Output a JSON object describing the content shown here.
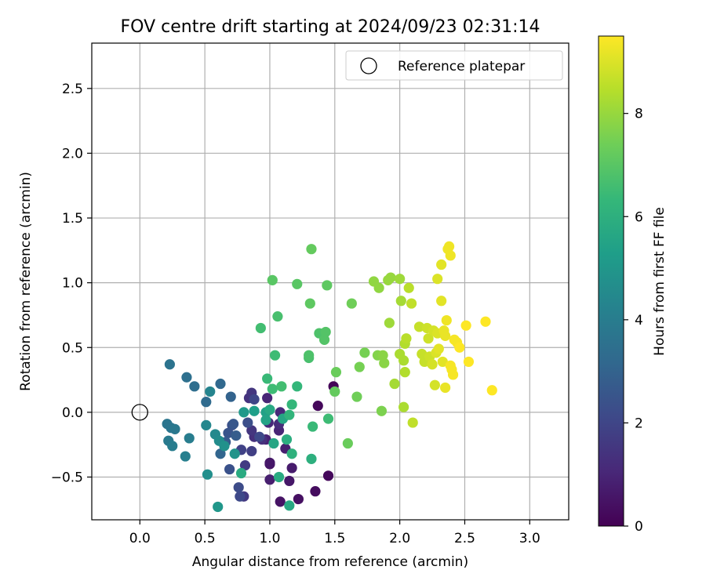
{
  "chart_data": {
    "type": "scatter",
    "title": "FOV centre drift starting at 2024/09/23 02:31:14",
    "xlabel": "Angular distance from reference (arcmin)",
    "ylabel": "Rotation from reference (arcmin)",
    "xlim": [
      -0.37,
      3.3
    ],
    "ylim": [
      -0.83,
      2.85
    ],
    "xticks": [
      0.0,
      0.5,
      1.0,
      1.5,
      2.0,
      2.5,
      3.0
    ],
    "xtick_labels": [
      "0.0",
      "0.5",
      "1.0",
      "1.5",
      "2.0",
      "2.5",
      "3.0"
    ],
    "yticks": [
      -0.5,
      0.0,
      0.5,
      1.0,
      1.5,
      2.0,
      2.5
    ],
    "ytick_labels": [
      "−0.5",
      "0.0",
      "0.5",
      "1.0",
      "1.5",
      "2.0",
      "2.5"
    ],
    "grid": true,
    "legend": {
      "position": "top-right",
      "entries": [
        {
          "label": "Reference platepar",
          "marker": "open-circle"
        }
      ]
    },
    "reference_point": {
      "x": 0.0,
      "y": 0.0
    },
    "colorbar": {
      "label": "Hours from first FF file",
      "colormap": "viridis",
      "range": [
        0,
        9.5
      ],
      "ticks": [
        0,
        2,
        4,
        6,
        8
      ],
      "tick_labels": [
        "0",
        "2",
        "4",
        "6",
        "8"
      ],
      "stops": [
        "#440154",
        "#482878",
        "#3e4989",
        "#31688e",
        "#26828e",
        "#1f9e89",
        "#35b779",
        "#6ece58",
        "#b5de2b",
        "#fde725"
      ]
    },
    "points": [
      {
        "x": 1.49,
        "y": 0.2,
        "h": 0.1
      },
      {
        "x": 1.37,
        "y": 0.05,
        "h": 0.2
      },
      {
        "x": 1.45,
        "y": -0.49,
        "h": 0.2
      },
      {
        "x": 1.35,
        "y": -0.61,
        "h": 0.3
      },
      {
        "x": 1.22,
        "y": -0.67,
        "h": 0.4
      },
      {
        "x": 1.08,
        "y": -0.69,
        "h": 0.5
      },
      {
        "x": 1.0,
        "y": -0.4,
        "h": 0.5
      },
      {
        "x": 1.0,
        "y": -0.39,
        "h": 0.6
      },
      {
        "x": 1.15,
        "y": -0.53,
        "h": 0.6
      },
      {
        "x": 1.17,
        "y": -0.43,
        "h": 0.7
      },
      {
        "x": 1.0,
        "y": -0.52,
        "h": 0.8
      },
      {
        "x": 1.12,
        "y": -0.28,
        "h": 0.8
      },
      {
        "x": 0.97,
        "y": -0.21,
        "h": 0.9
      },
      {
        "x": 0.98,
        "y": 0.11,
        "h": 1.0
      },
      {
        "x": 1.07,
        "y": -0.14,
        "h": 1.0
      },
      {
        "x": 1.08,
        "y": 0.0,
        "h": 1.1
      },
      {
        "x": 0.99,
        "y": -0.08,
        "h": 1.1
      },
      {
        "x": 1.07,
        "y": -0.09,
        "h": 1.2
      },
      {
        "x": 0.94,
        "y": -0.21,
        "h": 1.3
      },
      {
        "x": 0.88,
        "y": -0.19,
        "h": 1.3
      },
      {
        "x": 0.84,
        "y": 0.11,
        "h": 1.4
      },
      {
        "x": 0.86,
        "y": 0.15,
        "h": 1.5
      },
      {
        "x": 0.86,
        "y": -0.14,
        "h": 1.5
      },
      {
        "x": 0.8,
        "y": -0.65,
        "h": 1.6
      },
      {
        "x": 0.81,
        "y": -0.41,
        "h": 1.7
      },
      {
        "x": 0.86,
        "y": -0.3,
        "h": 1.8
      },
      {
        "x": 0.78,
        "y": -0.29,
        "h": 1.9
      },
      {
        "x": 0.88,
        "y": 0.1,
        "h": 2.0
      },
      {
        "x": 0.92,
        "y": -0.19,
        "h": 2.1
      },
      {
        "x": 0.77,
        "y": -0.65,
        "h": 2.1
      },
      {
        "x": 0.76,
        "y": -0.58,
        "h": 2.2
      },
      {
        "x": 0.83,
        "y": -0.08,
        "h": 2.3
      },
      {
        "x": 0.71,
        "y": -0.1,
        "h": 2.3
      },
      {
        "x": 0.69,
        "y": -0.44,
        "h": 2.4
      },
      {
        "x": 0.68,
        "y": -0.16,
        "h": 2.5
      },
      {
        "x": 0.72,
        "y": -0.09,
        "h": 2.6
      },
      {
        "x": 0.66,
        "y": -0.23,
        "h": 2.7
      },
      {
        "x": 0.74,
        "y": -0.18,
        "h": 2.8
      },
      {
        "x": 0.7,
        "y": 0.12,
        "h": 3.0
      },
      {
        "x": 0.62,
        "y": -0.32,
        "h": 3.1
      },
      {
        "x": 0.62,
        "y": 0.22,
        "h": 3.2
      },
      {
        "x": 0.51,
        "y": 0.08,
        "h": 3.3
      },
      {
        "x": 0.42,
        "y": 0.2,
        "h": 3.4
      },
      {
        "x": 0.36,
        "y": 0.27,
        "h": 3.5
      },
      {
        "x": 0.23,
        "y": 0.37,
        "h": 3.6
      },
      {
        "x": 0.21,
        "y": -0.09,
        "h": 3.7
      },
      {
        "x": 0.24,
        "y": -0.12,
        "h": 3.7
      },
      {
        "x": 0.27,
        "y": -0.13,
        "h": 3.8
      },
      {
        "x": 0.22,
        "y": -0.22,
        "h": 3.9
      },
      {
        "x": 0.25,
        "y": -0.26,
        "h": 4.0
      },
      {
        "x": 0.38,
        "y": -0.2,
        "h": 4.0
      },
      {
        "x": 0.35,
        "y": -0.34,
        "h": 4.1
      },
      {
        "x": 0.54,
        "y": 0.16,
        "h": 4.3
      },
      {
        "x": 0.51,
        "y": -0.1,
        "h": 4.4
      },
      {
        "x": 0.58,
        "y": -0.17,
        "h": 4.5
      },
      {
        "x": 0.61,
        "y": -0.22,
        "h": 4.6
      },
      {
        "x": 0.52,
        "y": -0.48,
        "h": 4.7
      },
      {
        "x": 0.65,
        "y": -0.26,
        "h": 4.8
      },
      {
        "x": 0.73,
        "y": -0.32,
        "h": 4.9
      },
      {
        "x": 0.6,
        "y": -0.73,
        "h": 5.0
      },
      {
        "x": 0.8,
        "y": 0.0,
        "h": 5.1
      },
      {
        "x": 0.88,
        "y": 0.01,
        "h": 5.3
      },
      {
        "x": 0.97,
        "y": 0.0,
        "h": 5.4
      },
      {
        "x": 0.97,
        "y": -0.06,
        "h": 5.5
      },
      {
        "x": 1.03,
        "y": -0.24,
        "h": 5.6
      },
      {
        "x": 1.1,
        "y": -0.05,
        "h": 5.6
      },
      {
        "x": 1.0,
        "y": 0.02,
        "h": 5.7
      },
      {
        "x": 1.15,
        "y": -0.72,
        "h": 5.7
      },
      {
        "x": 1.07,
        "y": -0.5,
        "h": 5.8
      },
      {
        "x": 0.78,
        "y": -0.47,
        "h": 5.8
      },
      {
        "x": 1.13,
        "y": -0.21,
        "h": 5.9
      },
      {
        "x": 1.32,
        "y": -0.36,
        "h": 6.0
      },
      {
        "x": 1.17,
        "y": -0.32,
        "h": 6.1
      },
      {
        "x": 1.15,
        "y": -0.02,
        "h": 6.2
      },
      {
        "x": 1.17,
        "y": 0.06,
        "h": 6.3
      },
      {
        "x": 1.21,
        "y": 0.2,
        "h": 6.3
      },
      {
        "x": 1.33,
        "y": -0.11,
        "h": 6.4
      },
      {
        "x": 1.45,
        "y": -0.05,
        "h": 6.5
      },
      {
        "x": 0.98,
        "y": 0.26,
        "h": 6.4
      },
      {
        "x": 1.02,
        "y": 0.18,
        "h": 6.5
      },
      {
        "x": 1.04,
        "y": 0.44,
        "h": 6.5
      },
      {
        "x": 1.09,
        "y": 0.2,
        "h": 6.6
      },
      {
        "x": 0.93,
        "y": 0.65,
        "h": 6.6
      },
      {
        "x": 1.06,
        "y": 0.74,
        "h": 6.7
      },
      {
        "x": 1.3,
        "y": 0.42,
        "h": 6.7
      },
      {
        "x": 1.3,
        "y": 0.44,
        "h": 6.8
      },
      {
        "x": 1.38,
        "y": 0.61,
        "h": 6.8
      },
      {
        "x": 1.42,
        "y": 0.56,
        "h": 6.9
      },
      {
        "x": 1.43,
        "y": 0.62,
        "h": 6.9
      },
      {
        "x": 1.02,
        "y": 1.02,
        "h": 7.0
      },
      {
        "x": 1.21,
        "y": 0.99,
        "h": 7.0
      },
      {
        "x": 1.31,
        "y": 0.84,
        "h": 7.1
      },
      {
        "x": 1.44,
        "y": 0.98,
        "h": 7.1
      },
      {
        "x": 1.32,
        "y": 1.26,
        "h": 7.2
      },
      {
        "x": 1.5,
        "y": 0.16,
        "h": 7.2
      },
      {
        "x": 1.51,
        "y": 0.31,
        "h": 7.3
      },
      {
        "x": 1.6,
        "y": -0.24,
        "h": 7.3
      },
      {
        "x": 1.63,
        "y": 0.84,
        "h": 7.4
      },
      {
        "x": 1.67,
        "y": 0.12,
        "h": 7.4
      },
      {
        "x": 1.69,
        "y": 0.35,
        "h": 7.5
      },
      {
        "x": 1.73,
        "y": 0.46,
        "h": 7.5
      },
      {
        "x": 1.86,
        "y": 0.01,
        "h": 7.6
      },
      {
        "x": 1.83,
        "y": 0.44,
        "h": 7.7
      },
      {
        "x": 1.87,
        "y": 0.44,
        "h": 7.8
      },
      {
        "x": 1.88,
        "y": 0.38,
        "h": 7.8
      },
      {
        "x": 1.8,
        "y": 1.01,
        "h": 7.9
      },
      {
        "x": 1.84,
        "y": 0.96,
        "h": 7.9
      },
      {
        "x": 1.91,
        "y": 1.02,
        "h": 8.0
      },
      {
        "x": 1.93,
        "y": 1.04,
        "h": 8.0
      },
      {
        "x": 2.0,
        "y": 1.03,
        "h": 8.1
      },
      {
        "x": 1.92,
        "y": 0.69,
        "h": 8.1
      },
      {
        "x": 1.96,
        "y": 0.22,
        "h": 8.2
      },
      {
        "x": 2.01,
        "y": 0.86,
        "h": 8.2
      },
      {
        "x": 2.0,
        "y": 0.45,
        "h": 8.3
      },
      {
        "x": 2.03,
        "y": 0.4,
        "h": 8.3
      },
      {
        "x": 2.03,
        "y": 0.04,
        "h": 8.3
      },
      {
        "x": 2.04,
        "y": 0.31,
        "h": 8.4
      },
      {
        "x": 2.04,
        "y": 0.53,
        "h": 8.4
      },
      {
        "x": 2.05,
        "y": 0.57,
        "h": 8.5
      },
      {
        "x": 2.07,
        "y": 0.96,
        "h": 8.5
      },
      {
        "x": 2.09,
        "y": 0.84,
        "h": 8.6
      },
      {
        "x": 2.1,
        "y": -0.08,
        "h": 8.6
      },
      {
        "x": 2.15,
        "y": 0.66,
        "h": 8.7
      },
      {
        "x": 2.17,
        "y": 0.45,
        "h": 8.7
      },
      {
        "x": 2.19,
        "y": 0.39,
        "h": 8.7
      },
      {
        "x": 2.21,
        "y": 0.65,
        "h": 8.8
      },
      {
        "x": 2.22,
        "y": 0.57,
        "h": 8.8
      },
      {
        "x": 2.23,
        "y": 0.43,
        "h": 8.8
      },
      {
        "x": 2.25,
        "y": 0.37,
        "h": 8.9
      },
      {
        "x": 2.26,
        "y": 0.63,
        "h": 8.9
      },
      {
        "x": 2.27,
        "y": 0.21,
        "h": 8.9
      },
      {
        "x": 2.28,
        "y": 0.46,
        "h": 9.0
      },
      {
        "x": 2.29,
        "y": 1.03,
        "h": 9.0
      },
      {
        "x": 2.29,
        "y": 0.61,
        "h": 9.0
      },
      {
        "x": 2.3,
        "y": 0.49,
        "h": 9.1
      },
      {
        "x": 2.32,
        "y": 1.14,
        "h": 9.1
      },
      {
        "x": 2.32,
        "y": 0.86,
        "h": 9.1
      },
      {
        "x": 2.33,
        "y": 0.39,
        "h": 9.1
      },
      {
        "x": 2.34,
        "y": 0.63,
        "h": 9.2
      },
      {
        "x": 2.35,
        "y": 0.59,
        "h": 9.2
      },
      {
        "x": 2.35,
        "y": 0.19,
        "h": 9.2
      },
      {
        "x": 2.36,
        "y": 0.71,
        "h": 9.3
      },
      {
        "x": 2.37,
        "y": 1.26,
        "h": 9.3
      },
      {
        "x": 2.38,
        "y": 1.28,
        "h": 9.3
      },
      {
        "x": 2.39,
        "y": 1.21,
        "h": 9.3
      },
      {
        "x": 2.39,
        "y": 0.36,
        "h": 9.4
      },
      {
        "x": 2.4,
        "y": 0.33,
        "h": 9.4
      },
      {
        "x": 2.41,
        "y": 0.29,
        "h": 9.4
      },
      {
        "x": 2.42,
        "y": 0.56,
        "h": 9.4
      },
      {
        "x": 2.44,
        "y": 0.54,
        "h": 9.4
      },
      {
        "x": 2.46,
        "y": 0.5,
        "h": 9.5
      },
      {
        "x": 2.51,
        "y": 0.67,
        "h": 9.5
      },
      {
        "x": 2.53,
        "y": 0.39,
        "h": 9.5
      },
      {
        "x": 2.66,
        "y": 0.7,
        "h": 9.5
      },
      {
        "x": 2.71,
        "y": 0.17,
        "h": 9.5
      }
    ]
  }
}
